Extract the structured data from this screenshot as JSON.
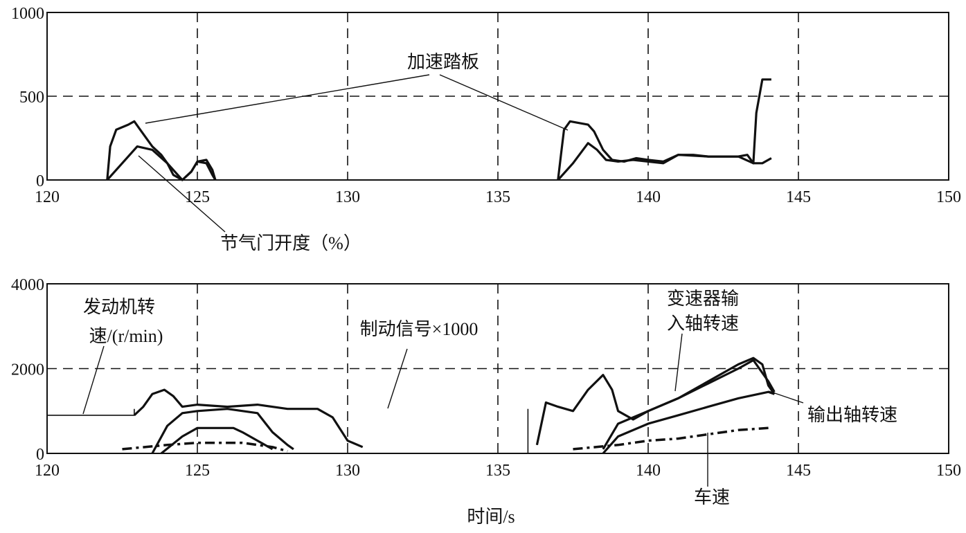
{
  "chart_data": [
    {
      "id": "top",
      "type": "line",
      "title": "",
      "xlabel": "",
      "ylabel": "",
      "xlim": [
        120,
        150
      ],
      "ylim": [
        0,
        1000
      ],
      "xticks": [
        "120",
        "125",
        "130",
        "135",
        "140",
        "145",
        "150"
      ],
      "xtick_values": [
        120,
        125,
        130,
        135,
        140,
        145,
        150
      ],
      "yticks": [
        "0",
        "500",
        "1000"
      ],
      "ytick_values": [
        0,
        500,
        1000
      ],
      "grid": "dashed",
      "grid_x": [
        125,
        130,
        135,
        140,
        145
      ],
      "grid_y": [
        500
      ],
      "series": [
        {
          "key": "pedal",
          "values": [
            [
              122.0,
              0
            ],
            [
              122.1,
              200
            ],
            [
              122.3,
              300
            ],
            [
              122.7,
              330
            ],
            [
              122.9,
              350
            ],
            [
              123.1,
              300
            ],
            [
              123.5,
              200
            ],
            [
              123.8,
              150
            ],
            [
              124.0,
              100
            ],
            [
              124.2,
              30
            ],
            [
              124.5,
              0
            ],
            [
              124.8,
              50
            ],
            [
              125.0,
              110
            ],
            [
              125.3,
              120
            ],
            [
              125.5,
              60
            ],
            [
              125.6,
              0
            ],
            [
              137.0,
              0
            ],
            [
              137.1,
              150
            ],
            [
              137.2,
              300
            ],
            [
              137.4,
              350
            ],
            [
              137.7,
              340
            ],
            [
              138.0,
              330
            ],
            [
              138.2,
              290
            ],
            [
              138.5,
              180
            ],
            [
              138.8,
              120
            ],
            [
              139.2,
              110
            ],
            [
              139.6,
              130
            ],
            [
              140.0,
              120
            ],
            [
              140.5,
              110
            ],
            [
              141.0,
              150
            ],
            [
              141.5,
              150
            ],
            [
              142.0,
              140
            ],
            [
              143.0,
              140
            ],
            [
              143.3,
              150
            ],
            [
              143.5,
              100
            ],
            [
              143.6,
              400
            ],
            [
              143.8,
              600
            ],
            [
              144.1,
              600
            ]
          ]
        },
        {
          "key": "throttle",
          "values": [
            [
              122.0,
              0
            ],
            [
              122.5,
              100
            ],
            [
              123.0,
              200
            ],
            [
              123.5,
              180
            ],
            [
              124.0,
              100
            ],
            [
              124.3,
              40
            ],
            [
              124.5,
              0
            ],
            [
              124.8,
              50
            ],
            [
              125.0,
              110
            ],
            [
              125.3,
              100
            ],
            [
              125.5,
              30
            ],
            [
              125.6,
              0
            ],
            [
              137.0,
              0
            ],
            [
              137.5,
              100
            ],
            [
              138.0,
              220
            ],
            [
              138.3,
              180
            ],
            [
              138.6,
              120
            ],
            [
              139.0,
              110
            ],
            [
              139.5,
              120
            ],
            [
              140.0,
              110
            ],
            [
              140.5,
              100
            ],
            [
              141.0,
              150
            ],
            [
              142.0,
              140
            ],
            [
              143.0,
              140
            ],
            [
              143.5,
              100
            ],
            [
              143.8,
              100
            ],
            [
              144.1,
              130
            ]
          ]
        }
      ],
      "annotations": [
        {
          "key": "pedal_label",
          "text": "加速踏板"
        },
        {
          "key": "throttle_label",
          "text": "节气门开度（%）"
        }
      ]
    },
    {
      "id": "bottom",
      "type": "line",
      "title": "",
      "xlabel": "时间/s",
      "ylabel": "",
      "xlim": [
        120,
        150
      ],
      "ylim": [
        0,
        4000
      ],
      "xticks": [
        "120",
        "125",
        "130",
        "135",
        "140",
        "145",
        "150"
      ],
      "xtick_values": [
        120,
        125,
        130,
        135,
        140,
        145,
        150
      ],
      "yticks": [
        "0",
        "2000",
        "4000"
      ],
      "ytick_values": [
        0,
        2000,
        4000
      ],
      "grid": "dashed",
      "grid_x": [
        125,
        130,
        135,
        140,
        145
      ],
      "grid_y": [
        2000
      ],
      "series": [
        {
          "key": "brake",
          "style": "thin",
          "values": [
            [
              120,
              900
            ],
            [
              122.9,
              900
            ],
            [
              122.9,
              1050
            ],
            [
              136.0,
              1050
            ],
            [
              136.0,
              0
            ]
          ]
        },
        {
          "key": "engine_speed",
          "style": "thick",
          "values": [
            [
              122.9,
              900
            ],
            [
              123.2,
              1100
            ],
            [
              123.5,
              1400
            ],
            [
              123.9,
              1500
            ],
            [
              124.2,
              1350
            ],
            [
              124.5,
              1100
            ],
            [
              125.0,
              1150
            ],
            [
              126.0,
              1100
            ],
            [
              127.0,
              1150
            ],
            [
              128.0,
              1050
            ],
            [
              129.0,
              1050
            ],
            [
              129.5,
              850
            ],
            [
              130.0,
              300
            ],
            [
              130.5,
              150
            ],
            [
              136.3,
              200
            ],
            [
              136.6,
              1200
            ],
            [
              137.0,
              1100
            ],
            [
              137.5,
              1000
            ],
            [
              138.0,
              1500
            ],
            [
              138.5,
              1850
            ],
            [
              138.8,
              1500
            ],
            [
              139.0,
              1000
            ],
            [
              139.5,
              800
            ],
            [
              140.0,
              1000
            ],
            [
              141.0,
              1300
            ],
            [
              142.0,
              1700
            ],
            [
              143.0,
              2100
            ],
            [
              143.5,
              2250
            ],
            [
              143.8,
              2100
            ],
            [
              144.0,
              1600
            ],
            [
              144.2,
              1400
            ]
          ]
        },
        {
          "key": "input_shaft",
          "style": "thick",
          "values": [
            [
              123.5,
              0
            ],
            [
              124.0,
              650
            ],
            [
              124.5,
              950
            ],
            [
              125.0,
              1000
            ],
            [
              126.0,
              1050
            ],
            [
              127.0,
              950
            ],
            [
              127.5,
              500
            ],
            [
              128.0,
              200
            ],
            [
              128.2,
              100
            ],
            [
              138.5,
              100
            ],
            [
              139.0,
              700
            ],
            [
              140.0,
              1000
            ],
            [
              141.0,
              1300
            ],
            [
              142.0,
              1650
            ],
            [
              143.0,
              2000
            ],
            [
              143.5,
              2200
            ],
            [
              144.0,
              1700
            ],
            [
              144.2,
              1450
            ]
          ]
        },
        {
          "key": "output_shaft",
          "style": "thick",
          "values": [
            [
              123.8,
              0
            ],
            [
              124.5,
              400
            ],
            [
              125.0,
              600
            ],
            [
              126.2,
              600
            ],
            [
              126.5,
              500
            ],
            [
              127.0,
              300
            ],
            [
              127.5,
              100
            ],
            [
              138.5,
              0
            ],
            [
              139.0,
              400
            ],
            [
              140.0,
              700
            ],
            [
              141.0,
              900
            ],
            [
              142.0,
              1100
            ],
            [
              143.0,
              1300
            ],
            [
              144.0,
              1450
            ],
            [
              144.2,
              1400
            ]
          ]
        },
        {
          "key": "vehicle_speed",
          "style": "dashdot",
          "values": [
            [
              122.5,
              100
            ],
            [
              124.0,
              200
            ],
            [
              125.0,
              250
            ],
            [
              126.5,
              250
            ],
            [
              127.5,
              150
            ],
            [
              128.0,
              50
            ],
            [
              137.5,
              100
            ],
            [
              139.0,
              200
            ],
            [
              140.0,
              300
            ],
            [
              141.0,
              350
            ],
            [
              142.0,
              450
            ],
            [
              143.0,
              550
            ],
            [
              144.0,
              600
            ]
          ]
        }
      ],
      "annotations": [
        {
          "key": "engine_label_1",
          "text": "发动机转"
        },
        {
          "key": "engine_label_2",
          "text": "速/(r/min)"
        },
        {
          "key": "brake_label",
          "text": "制动信号×1000"
        },
        {
          "key": "input_label_1",
          "text": "变速器输"
        },
        {
          "key": "input_label_2",
          "text": "入轴转速"
        },
        {
          "key": "output_label",
          "text": "输出轴转速"
        },
        {
          "key": "speed_label",
          "text": "车速"
        }
      ]
    }
  ],
  "colors": {
    "line": "#111111",
    "grid": "#111111",
    "background": "#ffffff"
  }
}
